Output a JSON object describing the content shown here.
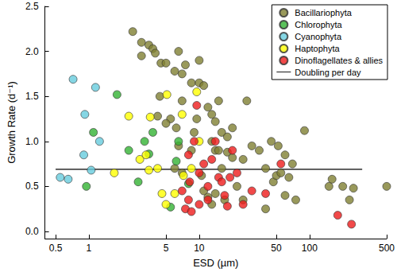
{
  "chart_data": {
    "type": "scatter",
    "x_label": "ESD (µm)",
    "y_label": "Growth Rate (d⁻¹)",
    "log": "x",
    "grid": false,
    "legend": "top-right",
    "xlim": [
      0.4,
      500
    ],
    "xticks": [
      0.5,
      1,
      5,
      10,
      50,
      100,
      500
    ],
    "ylim": [
      -0.08,
      2.5
    ],
    "yticks": [
      {
        "value": 0,
        "label": "0.0"
      },
      0.5,
      {
        "value": 1,
        "label": "1.0"
      },
      1.5,
      {
        "value": 2,
        "label": "2.0"
      },
      2.5
    ],
    "series": [
      {
        "name": "Bacillariophyta",
        "type": "scatter",
        "marker": "circle",
        "color": "#7f7f32",
        "x": [
          2.5,
          3,
          3,
          3.5,
          3.8,
          4,
          4.5,
          4.4,
          5,
          5.5,
          6,
          7,
          6.5,
          7.5,
          8.5,
          4.2,
          5,
          6.2,
          7,
          10,
          10,
          11,
          12,
          13,
          13,
          14,
          14,
          15,
          15,
          16,
          16,
          18,
          18,
          20,
          20,
          25,
          27,
          30,
          10.5,
          11,
          12,
          13,
          14,
          9,
          9.5,
          8.5,
          6.5,
          7,
          17,
          22,
          25,
          35,
          40,
          45,
          47,
          50,
          52,
          55,
          60,
          65,
          70,
          75,
          60,
          90,
          40,
          150,
          160,
          200,
          230,
          250,
          500,
          6
        ],
        "values": [
          2.22,
          1.95,
          2.1,
          2.07,
          2.03,
          1.98,
          1.87,
          1.5,
          1.87,
          1.25,
          1.78,
          1.75,
          2.0,
          1.85,
          1.65,
          1.28,
          1.2,
          1.15,
          1.45,
          1.9,
          1.65,
          1.62,
          1.38,
          1.3,
          1.0,
          1.22,
          0.9,
          0.9,
          1.45,
          1.1,
          0.7,
          1.05,
          0.88,
          1.15,
          0.82,
          0.8,
          1.45,
          0.95,
          0.62,
          0.45,
          0.38,
          0.3,
          0.42,
          1.1,
          1.25,
          0.9,
          0.95,
          0.65,
          0.35,
          0.5,
          0.35,
          0.9,
          0.7,
          1.0,
          0.55,
          0.62,
          0.95,
          0.65,
          0.85,
          0.6,
          0.75,
          0.35,
          0.4,
          1.12,
          0.25,
          0.5,
          0.58,
          0.5,
          0.35,
          0.48,
          0.5,
          0.7
        ]
      },
      {
        "name": "Chlorophyta",
        "type": "scatter",
        "marker": "circle",
        "color": "#33b333",
        "x": [
          0.95,
          1.1,
          1.8,
          2.3,
          2.8,
          3.2,
          3.5,
          3.8,
          5.5,
          6.2,
          6.5,
          8
        ],
        "values": [
          0.5,
          1.1,
          1.52,
          0.9,
          0.55,
          1.0,
          0.86,
          1.1,
          0.27,
          0.78,
          1.0,
          0.53
        ]
      },
      {
        "name": "Cyanophyta",
        "type": "scatter",
        "marker": "circle",
        "color": "#66ccdd",
        "x": [
          0.55,
          0.65,
          0.72,
          0.92,
          0.9,
          1.05,
          1.15,
          1.25
        ],
        "values": [
          0.6,
          0.58,
          1.69,
          1.3,
          0.85,
          0.68,
          1.6,
          1.0
        ]
      },
      {
        "name": "Haptophyta",
        "type": "scatter",
        "marker": "circle",
        "color": "#ffff00",
        "x": [
          1.7,
          2.3,
          2.9,
          3.3,
          3.6,
          3.5,
          4.2,
          4.6,
          5,
          5.1,
          6,
          7,
          7.2,
          8.5,
          9.5,
          10
        ],
        "values": [
          0.65,
          1.28,
          0.8,
          0.85,
          1.27,
          0.68,
          0.7,
          0.42,
          0.3,
          1.52,
          0.42,
          1.3,
          0.62,
          0.7,
          1.55,
          1.0
        ]
      },
      {
        "name": "Dinoflagellates & allies",
        "type": "scatter",
        "marker": "circle",
        "color": "#ee1c1c",
        "x": [
          7,
          7.5,
          8,
          8.2,
          8.5,
          9,
          9.5,
          10,
          10,
          11,
          12,
          12,
          13,
          14,
          15,
          16,
          17,
          18,
          20,
          22,
          25,
          30,
          40,
          55,
          180,
          240,
          8,
          19
        ],
        "values": [
          0.45,
          0.25,
          0.85,
          0.55,
          0.22,
          1.0,
          1.4,
          0.65,
          0.3,
          0.75,
          0.5,
          0.35,
          0.8,
          1.0,
          0.6,
          0.55,
          0.4,
          0.28,
          0.9,
          0.65,
          0.3,
          0.45,
          0.42,
          0.75,
          0.18,
          0.08,
          0.35,
          0.6
        ]
      },
      {
        "name": "Doubling per day",
        "type": "line",
        "line_style": "solid",
        "color": "#000000",
        "x": [
          0.5,
          300
        ],
        "values": [
          0.69,
          0.69
        ]
      }
    ]
  }
}
